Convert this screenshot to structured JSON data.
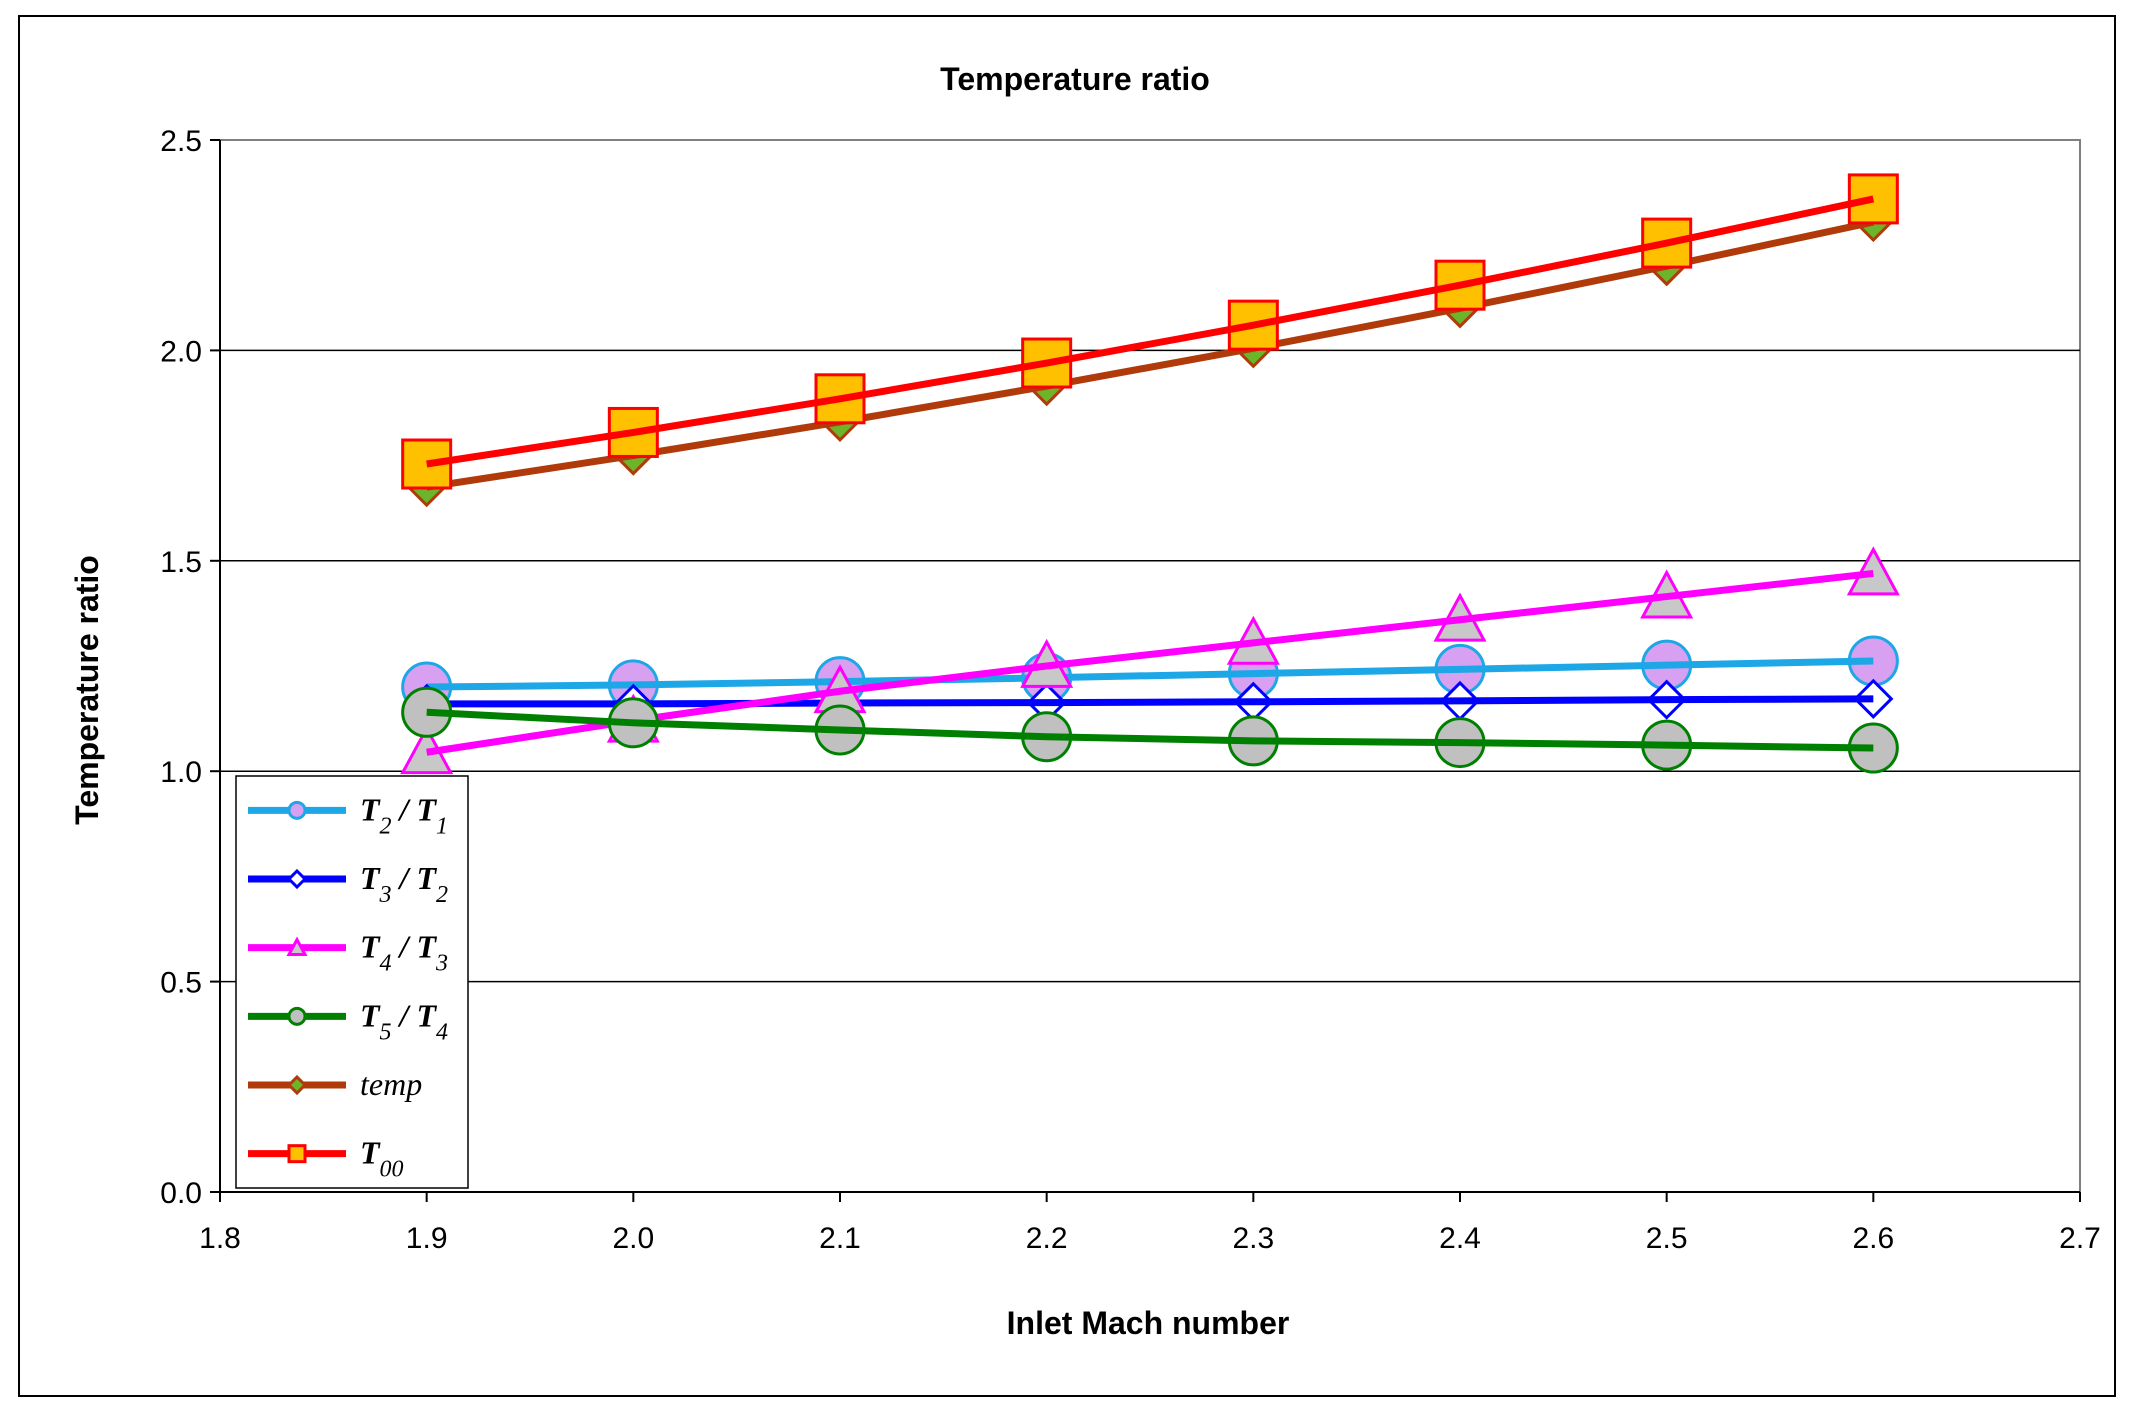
{
  "chart_data": {
    "type": "line",
    "title": "Temperature ratio",
    "xlabel": "Inlet Mach number",
    "ylabel": "Temperature ratio",
    "xlim": [
      1.8,
      2.7
    ],
    "ylim": [
      0.0,
      2.5
    ],
    "xticks": [
      "1.8",
      "1.9",
      "2.0",
      "2.1",
      "2.2",
      "2.3",
      "2.4",
      "2.5",
      "2.6",
      "2.7"
    ],
    "yticks": [
      "0.0",
      "0.5",
      "1.0",
      "1.5",
      "2.0",
      "2.5"
    ],
    "grid": "horizontal",
    "legend_position": "bottom-left",
    "x": [
      1.9,
      2.0,
      2.1,
      2.2,
      2.3,
      2.4,
      2.5,
      2.6
    ],
    "series": [
      {
        "name": "T2 / T1",
        "label_parts": {
          "a": "T",
          "a_sub": "2",
          "b": "T",
          "b_sub": "1"
        },
        "values": [
          1.2,
          1.205,
          1.213,
          1.222,
          1.232,
          1.242,
          1.252,
          1.262
        ],
        "line_color": "#1EA7E6",
        "marker": "circle",
        "marker_fill": "#D8A0F0",
        "marker_stroke": "#1EA7E6"
      },
      {
        "name": "T3 / T2",
        "label_parts": {
          "a": "T",
          "a_sub": "3",
          "b": "T",
          "b_sub": "2"
        },
        "values": [
          1.16,
          1.16,
          1.162,
          1.163,
          1.165,
          1.167,
          1.17,
          1.172
        ],
        "line_color": "#0000FF",
        "marker": "diamond",
        "marker_fill": "#ffffff",
        "marker_stroke": "#0000FF"
      },
      {
        "name": "T4 / T3",
        "label_parts": {
          "a": "T",
          "a_sub": "4",
          "b": "T",
          "b_sub": "3"
        },
        "values": [
          1.045,
          1.12,
          1.19,
          1.25,
          1.305,
          1.36,
          1.415,
          1.47
        ],
        "line_color": "#FF00FF",
        "marker": "triangle",
        "marker_fill": "#C8C8C8",
        "marker_stroke": "#FF00FF"
      },
      {
        "name": "T5 / T4",
        "label_parts": {
          "a": "T",
          "a_sub": "5",
          "b": "T",
          "b_sub": "4"
        },
        "values": [
          1.14,
          1.115,
          1.098,
          1.082,
          1.072,
          1.068,
          1.062,
          1.055
        ],
        "line_color": "#008000",
        "marker": "circle",
        "marker_fill": "#C0C0C0",
        "marker_stroke": "#008000"
      },
      {
        "name": "temp",
        "label_parts": {
          "plain": "temp"
        },
        "values": [
          1.675,
          1.75,
          1.83,
          1.915,
          2.005,
          2.1,
          2.2,
          2.305
        ],
        "line_color": "#B03A0A",
        "marker": "diamond",
        "marker_fill": "#6CB52A",
        "marker_stroke": "#B03A0A"
      },
      {
        "name": "T00",
        "label_parts": {
          "a": "T",
          "a_sub": "00"
        },
        "values": [
          1.73,
          1.805,
          1.885,
          1.97,
          2.06,
          2.155,
          2.255,
          2.36
        ],
        "line_color": "#FF0000",
        "marker": "square",
        "marker_fill": "#FFC000",
        "marker_stroke": "#FF0000"
      }
    ]
  }
}
